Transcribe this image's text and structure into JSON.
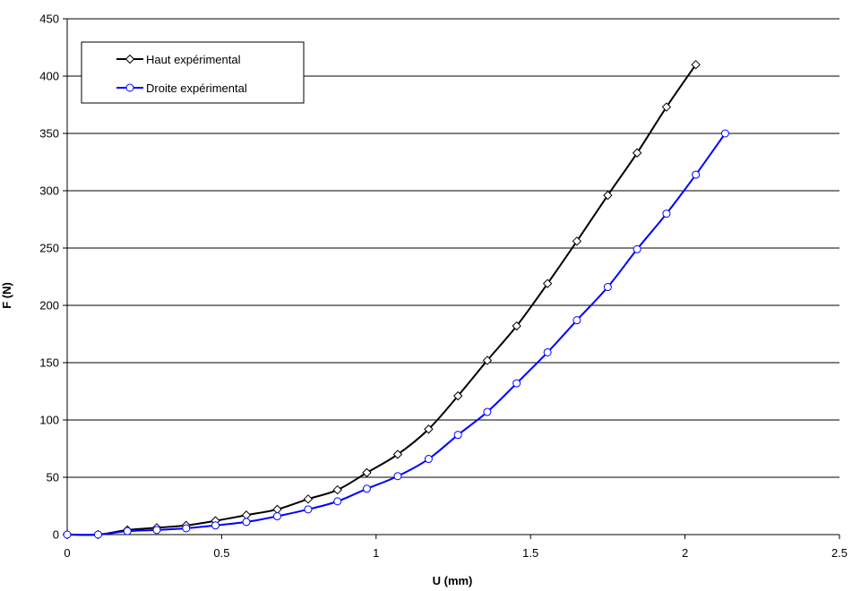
{
  "chart_data": {
    "type": "line",
    "xlabel": "U (mm)",
    "ylabel": "F (N)",
    "xlim": [
      0,
      2.5
    ],
    "ylim": [
      0,
      450
    ],
    "x_ticks": [
      "0",
      "0.5",
      "1",
      "1.5",
      "2",
      "2.5"
    ],
    "y_ticks": [
      "0",
      "50",
      "100",
      "150",
      "200",
      "250",
      "300",
      "350",
      "400",
      "450"
    ],
    "grid": "horizontal",
    "legend_position": "top-left",
    "series": [
      {
        "name": "Haut expérimental",
        "color": "#000000",
        "marker": "diamond",
        "x": [
          0,
          0.1,
          0.195,
          0.29,
          0.385,
          0.48,
          0.58,
          0.68,
          0.78,
          0.875,
          0.97,
          1.07,
          1.17,
          1.265,
          1.36,
          1.455,
          1.555,
          1.65,
          1.75,
          1.845,
          1.94,
          2.035
        ],
        "y": [
          0,
          0,
          4,
          6,
          8,
          12,
          17,
          22,
          31,
          39,
          54,
          70,
          92,
          121,
          152,
          182,
          219,
          256,
          296,
          333,
          373,
          410
        ]
      },
      {
        "name": "Droite expérimental",
        "color": "#0000ff",
        "marker": "circle",
        "x": [
          0,
          0.1,
          0.195,
          0.29,
          0.385,
          0.48,
          0.58,
          0.68,
          0.78,
          0.875,
          0.97,
          1.07,
          1.17,
          1.265,
          1.36,
          1.455,
          1.555,
          1.65,
          1.75,
          1.845,
          1.94,
          2.035,
          2.13
        ],
        "y": [
          0,
          0,
          3,
          4,
          5.5,
          8,
          11,
          16,
          22,
          29,
          40,
          51,
          66,
          87,
          107,
          132,
          159,
          187,
          216,
          249,
          280,
          314,
          350
        ]
      }
    ]
  }
}
